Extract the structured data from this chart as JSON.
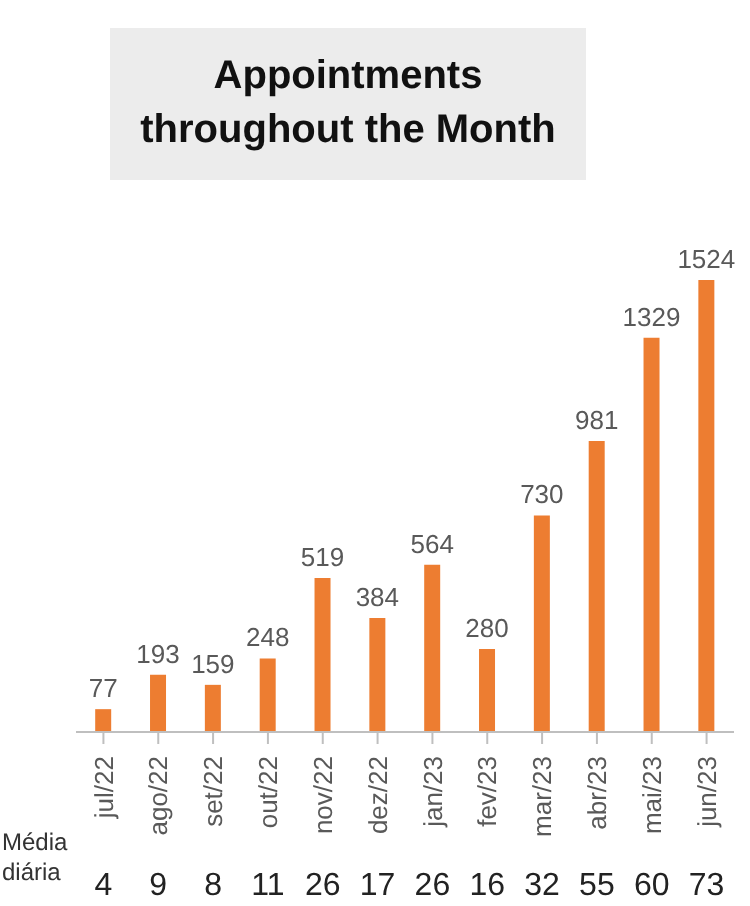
{
  "chart_data": {
    "type": "bar",
    "title": "Appointments throughout the Month",
    "categories": [
      "jul/22",
      "ago/22",
      "set/22",
      "out/22",
      "nov/22",
      "dez/22",
      "jan/23",
      "fev/23",
      "mar/23",
      "abr/23",
      "mai/23",
      "jun/23"
    ],
    "values": [
      77,
      193,
      159,
      248,
      519,
      384,
      564,
      280,
      730,
      981,
      1329,
      1524
    ],
    "color": "#ed7d31",
    "data_labels": true,
    "annotations": [
      "Média diária",
      "4",
      "9",
      "8",
      "11",
      "26",
      "17",
      "26",
      "16",
      "32",
      "55",
      "60",
      "73"
    ]
  }
}
